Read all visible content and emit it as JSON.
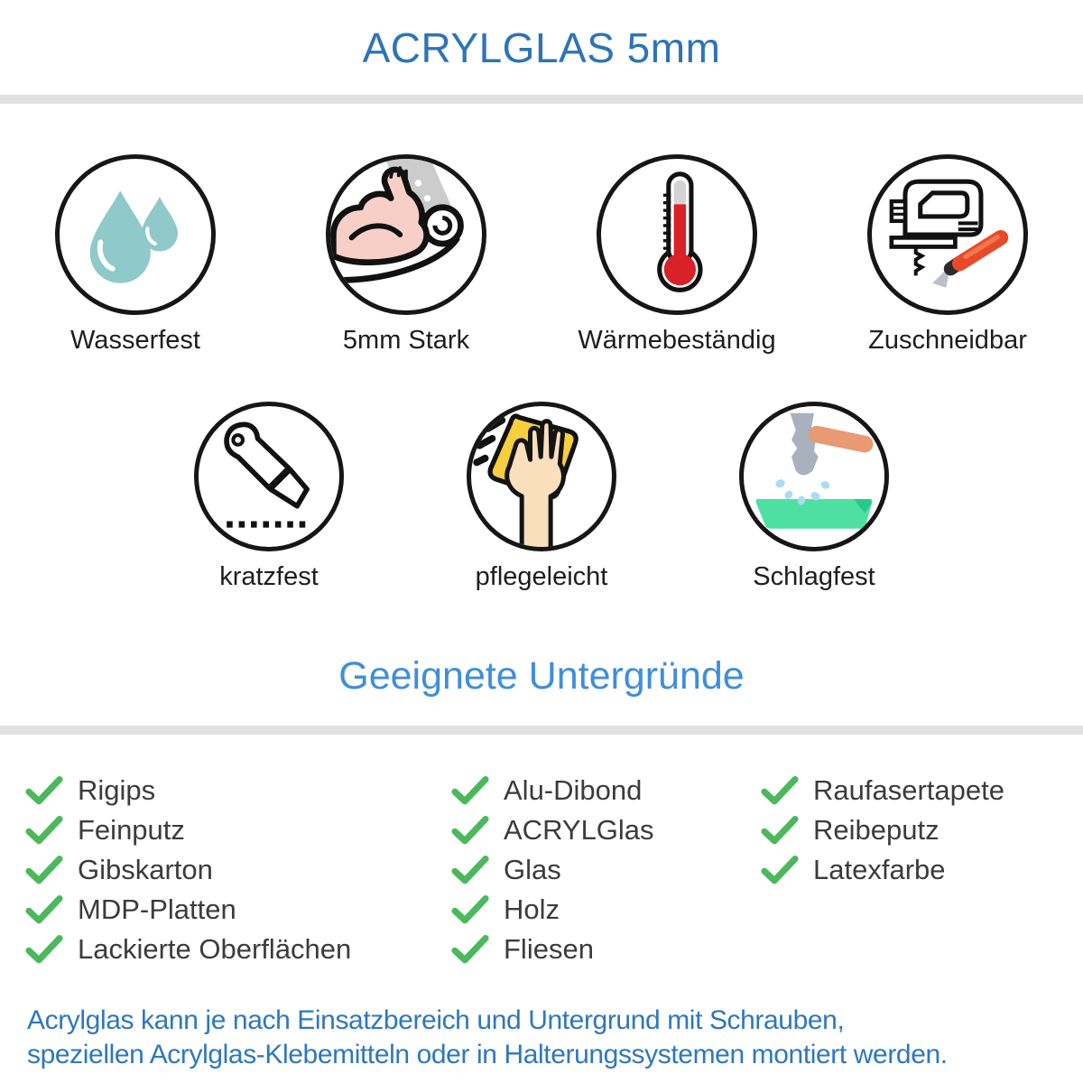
{
  "header": {
    "title": "ACRYLGLAS 5mm"
  },
  "features": [
    {
      "label": "Wasserfest",
      "icon": "water-drops-icon"
    },
    {
      "label": "5mm Stark",
      "icon": "muscle-arm-icon"
    },
    {
      "label": "Wärmebeständig",
      "icon": "thermometer-icon"
    },
    {
      "label": "Zuschneidbar",
      "icon": "jigsaw-icon"
    },
    {
      "label": "kratzfest",
      "icon": "utility-knife-icon"
    },
    {
      "label": "pflegeleicht",
      "icon": "cleaning-hand-icon"
    },
    {
      "label": "Schlagfest",
      "icon": "hammer-icon"
    }
  ],
  "substrates": {
    "heading": "Geeignete Untergründe",
    "columns": [
      {
        "items": [
          "Rigips",
          "Feinputz",
          "Gibskarton",
          "MDP-Platten",
          "Lackierte Oberflächen"
        ]
      },
      {
        "items": [
          "Alu-Dibond",
          "ACRYLGlas",
          "Glas",
          "Holz",
          "Fliesen"
        ]
      },
      {
        "items": [
          "Raufasertapete",
          "Reibeputz",
          "Latexfarbe"
        ]
      }
    ]
  },
  "note": {
    "lines": [
      "Acrylglas kann je nach Einsatzbereich und Untergrund mit Schrauben,",
      "speziellen Acrylglas-Klebemitteln oder in Halterungssystemen montiert werden."
    ]
  },
  "colors": {
    "title_blue": "#2e74b5",
    "heading_blue": "#3e8eda",
    "note_blue": "#2e77bd",
    "check_green": "#4bb85c",
    "divider_gray": "#e1e1e1",
    "drop_teal": "#8fc9c9",
    "thermo_red": "#d92128",
    "cloth_yellow": "#f6ce3e",
    "surface_green": "#4ee0a3"
  }
}
